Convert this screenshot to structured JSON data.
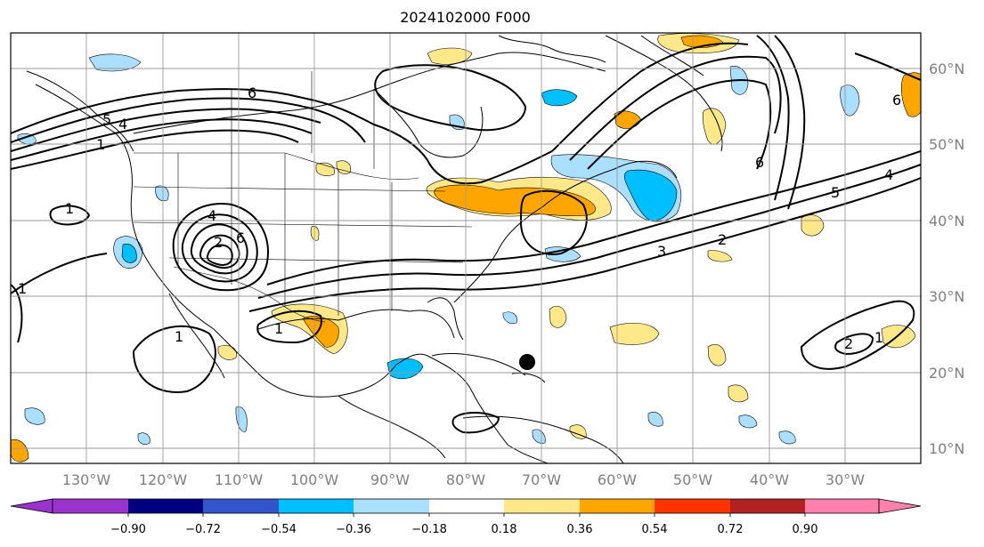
{
  "title": "2024102000 F000",
  "lat_labels": [
    "60°N",
    "50°N",
    "40°N",
    "30°N",
    "20°N",
    "10°N"
  ],
  "lon_labels": [
    "130°W",
    "120°W",
    "110°W",
    "100°W",
    "90°W",
    "80°W",
    "70°W",
    "60°W",
    "50°W",
    "40°W",
    "30°W"
  ],
  "colorbar": {
    "colors": [
      "#9933cc",
      "#000080",
      "#3355cc",
      "#00bfff",
      "#aadfff",
      "#ffffff",
      "#ffe88a",
      "#ffa500",
      "#ff3300",
      "#b22222",
      "#ff80aa"
    ],
    "under_color": "#9933cc",
    "over_color": "#ff80aa",
    "tick_labels": [
      "−0.90",
      "−0.72",
      "−0.54",
      "−0.36",
      "−0.18",
      "0.18",
      "0.36",
      "0.54",
      "0.72",
      "0.90"
    ]
  },
  "contour_labels": {
    "c6": "6",
    "c5": "5",
    "c4": "4",
    "c3": "3",
    "c2": "2",
    "c1": "1",
    "c2b": "2",
    "c1b": "1",
    "c1c": "1",
    "c1d": "1",
    "c5b": "5",
    "c6b": "6",
    "c4b": "4",
    "c6c": "6",
    "c1e": "1",
    "c2c": "2",
    "c1f": "1",
    "c4c": "4",
    "c6d": "6"
  },
  "marker": "storm-center-dot"
}
